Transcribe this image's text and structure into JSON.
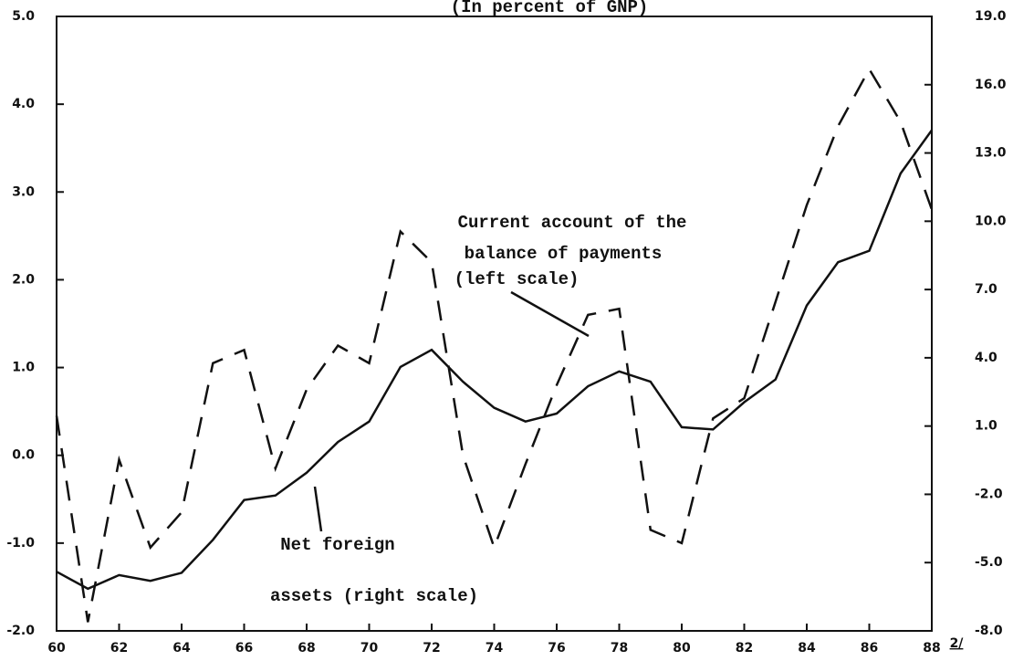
{
  "chart_data": {
    "type": "line",
    "title": "(In percent of GNP)",
    "x": [
      60,
      61,
      62,
      63,
      64,
      65,
      66,
      67,
      68,
      69,
      70,
      71,
      72,
      73,
      74,
      75,
      76,
      77,
      78,
      79,
      80,
      81,
      82,
      83,
      84,
      85,
      86,
      87,
      88
    ],
    "series": [
      {
        "name": "Current account of the balance of payments",
        "color": "#111111",
        "style": "dashed",
        "axis": "y",
        "values": [
          0.45,
          -1.9,
          -0.05,
          -1.05,
          -0.65,
          1.05,
          1.2,
          -0.15,
          0.75,
          1.25,
          1.05,
          2.55,
          2.2,
          0.0,
          -1.05,
          -0.1,
          0.8,
          1.6,
          1.67,
          -0.85,
          -1.0,
          0.42,
          0.65,
          1.75,
          2.85,
          3.75,
          4.4,
          3.8,
          2.8
        ]
      },
      {
        "name": "Net foreign assets",
        "color": "#111111",
        "style": "solid",
        "axis": "y2",
        "values": [
          -5.4,
          -6.15,
          -5.55,
          -5.8,
          -5.45,
          -4.0,
          -2.25,
          -2.05,
          -1.05,
          0.3,
          1.2,
          3.6,
          4.35,
          2.95,
          1.8,
          1.2,
          1.55,
          2.75,
          3.4,
          2.95,
          0.95,
          0.85,
          2.05,
          3.05,
          6.3,
          8.2,
          8.7,
          12.1,
          14.0
        ]
      }
    ],
    "xlim": [
      60,
      88
    ],
    "xticks": [
      60,
      62,
      64,
      66,
      68,
      70,
      72,
      74,
      76,
      78,
      80,
      82,
      84,
      86,
      88
    ],
    "ylim": [
      -2,
      5
    ],
    "yticks": [
      {
        "value": -2,
        "label": "-2.0"
      },
      {
        "value": -1,
        "label": "-1.0"
      },
      {
        "value": 0,
        "label": "0.0"
      },
      {
        "value": 1,
        "label": "1.0"
      },
      {
        "value": 2,
        "label": "2.0"
      },
      {
        "value": 3,
        "label": "3.0"
      },
      {
        "value": 4,
        "label": "4.0"
      },
      {
        "value": 5,
        "label": "5.0"
      }
    ],
    "y2lim": [
      -8,
      19
    ],
    "y2ticks": [
      {
        "value": -8,
        "label": "-8.0"
      },
      {
        "value": -5,
        "label": "-5.0"
      },
      {
        "value": -2,
        "label": "-2.0"
      },
      {
        "value": 1,
        "label": "1.0"
      },
      {
        "value": 4,
        "label": "4.0"
      },
      {
        "value": 7,
        "label": "7.0"
      },
      {
        "value": 10,
        "label": "10.0"
      },
      {
        "value": 13,
        "label": "13.0"
      },
      {
        "value": 16,
        "label": "16.0"
      },
      {
        "value": 19,
        "label": "19.0"
      }
    ],
    "annotations": [
      "Current account of the",
      "balance of payments",
      "(left scale)",
      "Net foreign",
      "assets (right scale)"
    ],
    "footnote": "2/"
  }
}
